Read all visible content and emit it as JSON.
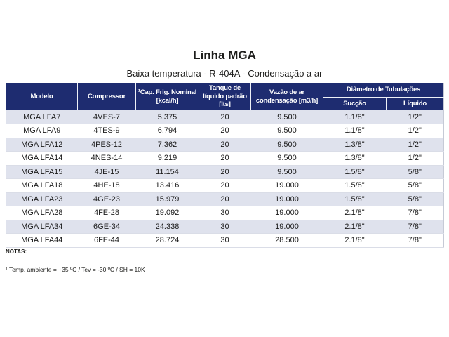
{
  "page": {
    "title": "Linha MGA",
    "subtitle": "Baixa temperatura - R-404A - Condensação a ar"
  },
  "table": {
    "columns": [
      "Modelo",
      "Compressor",
      "¹Cap. Frig. Nominal [kcal/h]",
      "Tanque de líquido padrão [lts]",
      "Vazão de ar condensação [m3/h]"
    ],
    "group_header": "Diâmetro de Tubulações",
    "sub_columns": [
      "Sucção",
      "Líquido"
    ],
    "rows": [
      [
        "MGA LFA7",
        "4VES-7",
        "5.375",
        "20",
        "9.500",
        "1.1/8\"",
        "1/2\""
      ],
      [
        "MGA LFA9",
        "4TES-9",
        "6.794",
        "20",
        "9.500",
        "1.1/8\"",
        "1/2\""
      ],
      [
        "MGA LFA12",
        "4PES-12",
        "7.362",
        "20",
        "9.500",
        "1.3/8\"",
        "1/2\""
      ],
      [
        "MGA LFA14",
        "4NES-14",
        "9.219",
        "20",
        "9.500",
        "1.3/8\"",
        "1/2\""
      ],
      [
        "MGA LFA15",
        "4JE-15",
        "11.154",
        "20",
        "9.500",
        "1.5/8\"",
        "5/8\""
      ],
      [
        "MGA LFA18",
        "4HE-18",
        "13.416",
        "20",
        "19.000",
        "1.5/8\"",
        "5/8\""
      ],
      [
        "MGA LFA23",
        "4GE-23",
        "15.979",
        "20",
        "19.000",
        "1.5/8\"",
        "5/8\""
      ],
      [
        "MGA LFA28",
        "4FE-28",
        "19.092",
        "30",
        "19.000",
        "2.1/8\"",
        "7/8\""
      ],
      [
        "MGA LFA34",
        "6GE-34",
        "24.338",
        "30",
        "19.000",
        "2.1/8\"",
        "7/8\""
      ],
      [
        "MGA LFA44",
        "6FE-44",
        "28.724",
        "30",
        "28.500",
        "2.1/8\"",
        "7/8\""
      ]
    ]
  },
  "notes": {
    "label": "NOTAS:",
    "items": [
      "¹ Temp. ambiente = +35 ºC / Tev = -30 ºC / SH = 10K"
    ]
  },
  "colors": {
    "header_bg": "#1e2c70",
    "header_text": "#ffffff",
    "row_stripe": "#dfe2ed",
    "table_border": "#c6cad6"
  }
}
